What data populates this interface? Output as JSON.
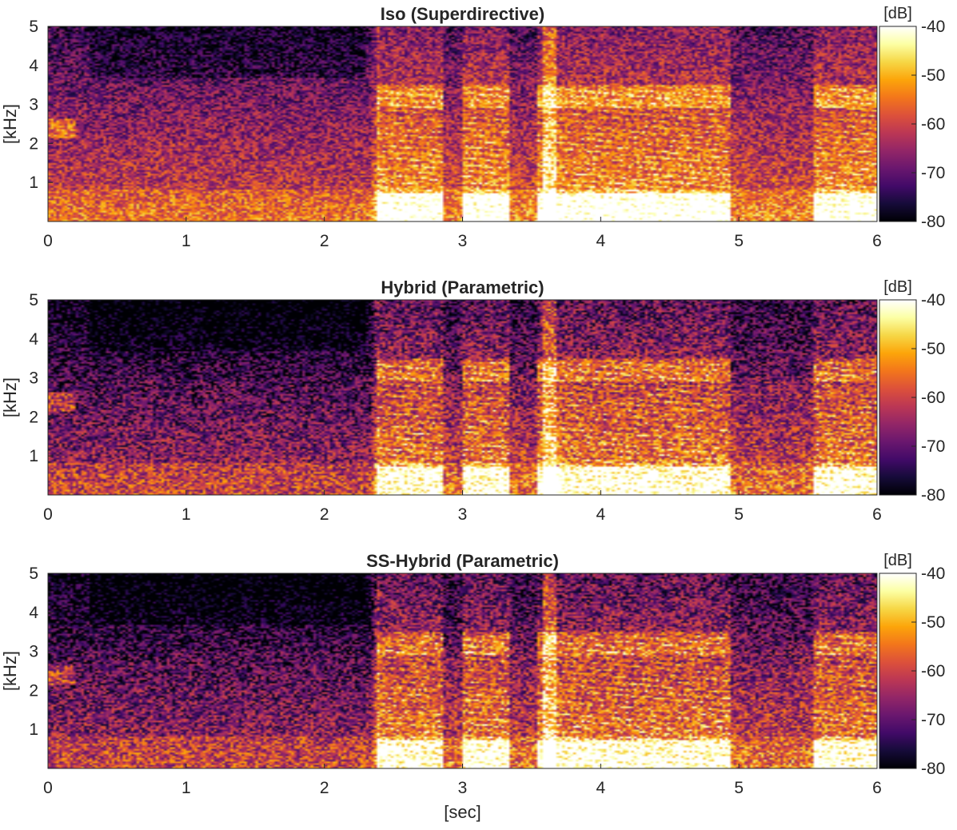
{
  "figure": {
    "xlabel": "[sec]"
  },
  "chart_data": [
    {
      "type": "heatmap",
      "title": "Iso (Superdirective)",
      "xlabel": "",
      "ylabel": "[kHz]",
      "xlim": [
        0,
        6
      ],
      "ylim": [
        0,
        5
      ],
      "x_ticks": [
        "0",
        "1",
        "2",
        "3",
        "4",
        "5",
        "6"
      ],
      "y_ticks": [
        "1",
        "2",
        "3",
        "4",
        "5"
      ],
      "colorbar": {
        "unit": "[dB]",
        "range": [
          -80,
          -40
        ],
        "ticks": [
          "-40",
          "-50",
          "-60",
          "-70",
          "-80"
        ],
        "colormap": "inferno-like"
      }
    },
    {
      "type": "heatmap",
      "title": "Hybrid (Parametric)",
      "xlabel": "",
      "ylabel": "[kHz]",
      "xlim": [
        0,
        6
      ],
      "ylim": [
        0,
        5
      ],
      "x_ticks": [
        "0",
        "1",
        "2",
        "3",
        "4",
        "5",
        "6"
      ],
      "y_ticks": [
        "1",
        "2",
        "3",
        "4",
        "5"
      ],
      "colorbar": {
        "unit": "[dB]",
        "range": [
          -80,
          -40
        ],
        "ticks": [
          "-40",
          "-50",
          "-60",
          "-70",
          "-80"
        ],
        "colormap": "inferno-like"
      }
    },
    {
      "type": "heatmap",
      "title": "SS-Hybrid (Parametric)",
      "xlabel": "[sec]",
      "ylabel": "[kHz]",
      "xlim": [
        0,
        6
      ],
      "ylim": [
        0,
        5
      ],
      "x_ticks": [
        "0",
        "1",
        "2",
        "3",
        "4",
        "5",
        "6"
      ],
      "y_ticks": [
        "1",
        "2",
        "3",
        "4",
        "5"
      ],
      "colorbar": {
        "unit": "[dB]",
        "range": [
          -80,
          -40
        ],
        "ticks": [
          "-40",
          "-50",
          "-60",
          "-70",
          "-80"
        ],
        "colormap": "inferno-like"
      }
    }
  ]
}
